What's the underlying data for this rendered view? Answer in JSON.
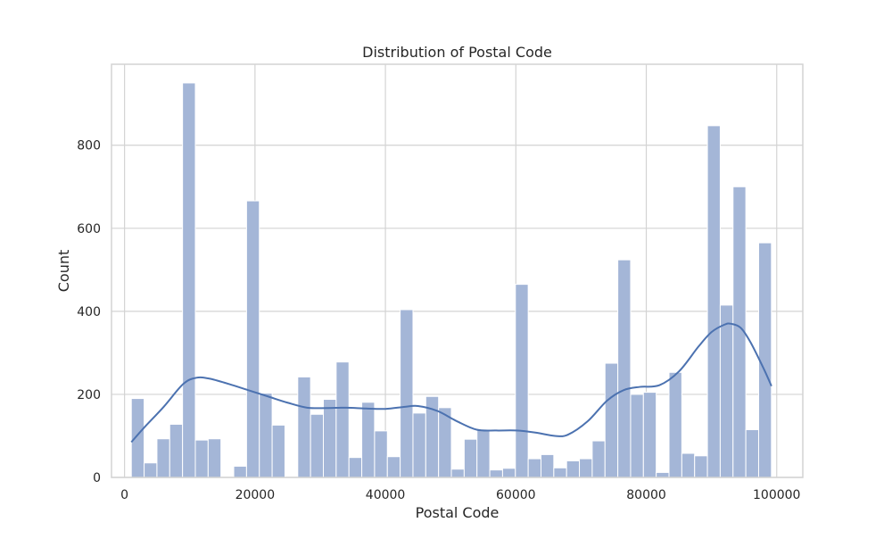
{
  "chart_data": {
    "type": "bar",
    "title": "Distribution of Postal Code",
    "xlabel": "Postal Code",
    "ylabel": "Count",
    "xlim": [
      -2000,
      104000
    ],
    "ylim": [
      0,
      995
    ],
    "grid": true,
    "x_ticks": [
      0,
      20000,
      40000,
      60000,
      80000,
      100000
    ],
    "x_tick_labels": [
      "0",
      "20000",
      "40000",
      "60000",
      "80000",
      "100000"
    ],
    "y_ticks": [
      0,
      200,
      400,
      600,
      800
    ],
    "y_tick_labels": [
      "0",
      "200",
      "400",
      "600",
      "800"
    ],
    "bin_start": 1040,
    "bin_width": 1963,
    "values": [
      190,
      35,
      93,
      128,
      950,
      90,
      93,
      0,
      27,
      666,
      203,
      126,
      0,
      242,
      152,
      188,
      278,
      48,
      181,
      112,
      50,
      404,
      155,
      195,
      168,
      20,
      92,
      115,
      18,
      22,
      465,
      45,
      55,
      23,
      40,
      45,
      88,
      275,
      524,
      200,
      205,
      12,
      253,
      58,
      52,
      847,
      415,
      700,
      115,
      565
    ],
    "kde": {
      "x": [
        1040,
        3000,
        6000,
        9000,
        11000,
        13000,
        16000,
        19000,
        22000,
        25000,
        28000,
        31000,
        34000,
        37000,
        40000,
        43000,
        45000,
        48000,
        51000,
        54000,
        57000,
        60000,
        63000,
        66000,
        68000,
        71000,
        74000,
        76500,
        79000,
        82000,
        85000,
        88000,
        90000,
        92000,
        93000,
        94500,
        96000,
        98000,
        99200
      ],
      "y": [
        85,
        120,
        170,
        225,
        240,
        238,
        225,
        210,
        195,
        180,
        168,
        167,
        168,
        166,
        165,
        170,
        172,
        160,
        135,
        115,
        113,
        113,
        108,
        100,
        103,
        135,
        185,
        210,
        218,
        222,
        255,
        315,
        350,
        368,
        370,
        360,
        325,
        262,
        220
      ]
    },
    "colors": {
      "bar_fill": "#a4b6d7",
      "kde_line": "#4c72b0",
      "grid": "#d3d3d3",
      "frame": "#d3d3d3"
    }
  }
}
